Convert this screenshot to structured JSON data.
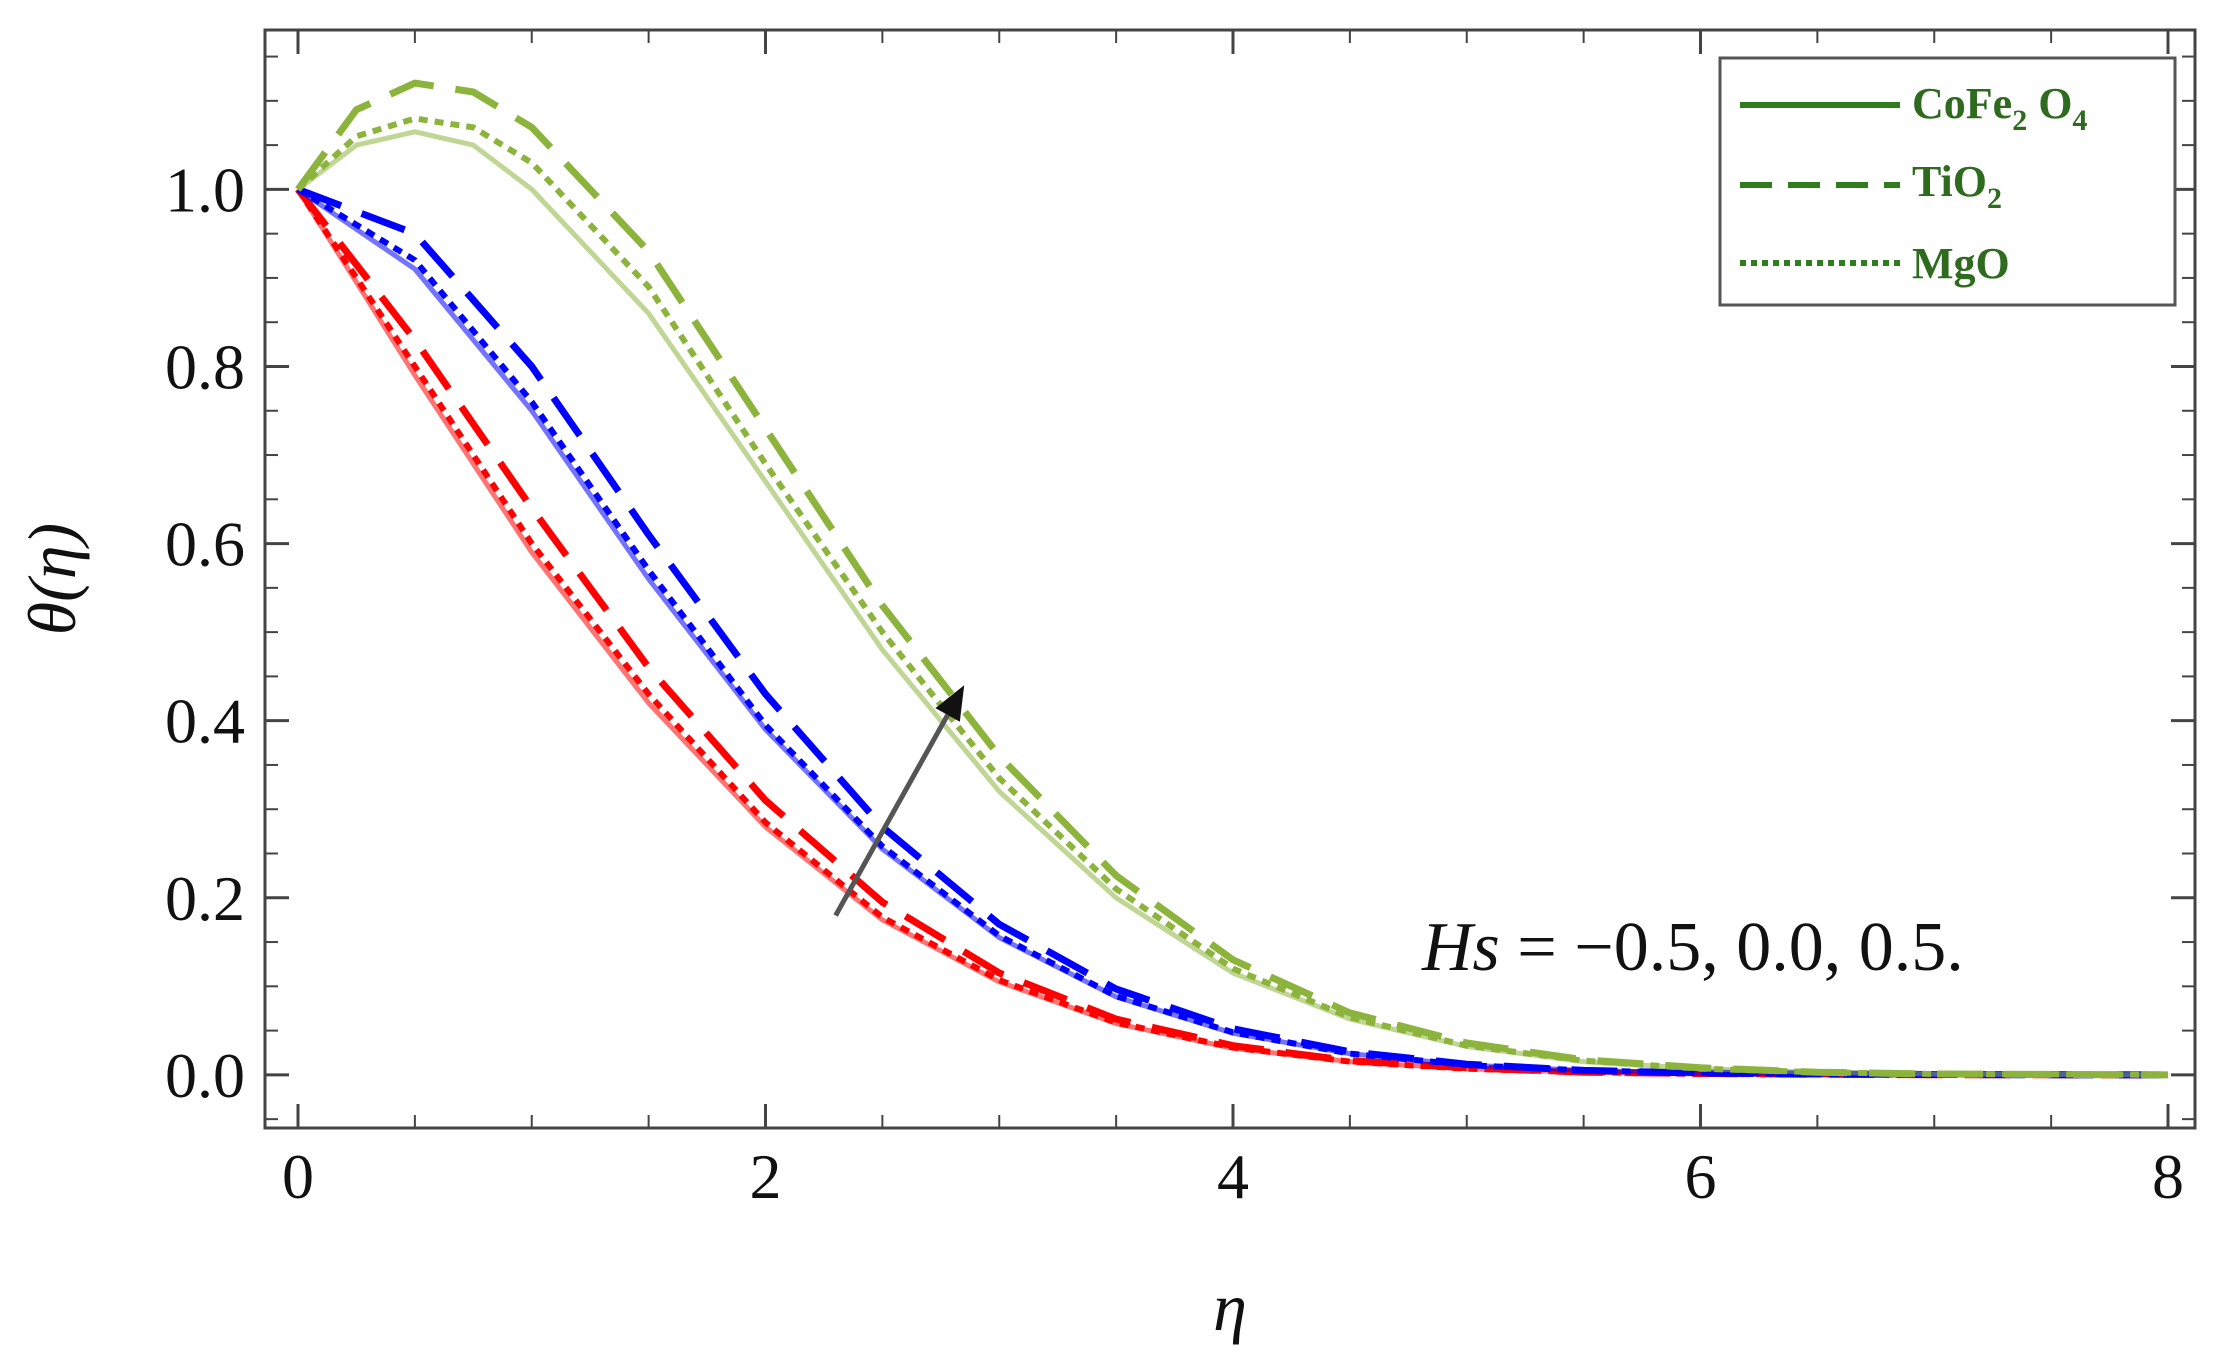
{
  "chart_data": {
    "type": "line",
    "title": "",
    "xlabel": "η",
    "ylabel": "θ(η)",
    "xlim": [
      0,
      8
    ],
    "ylim": [
      -0.06,
      1.18
    ],
    "xticks": [
      0,
      2,
      4,
      6,
      8
    ],
    "xtick_labels": [
      "0",
      "2",
      "4",
      "6",
      "8"
    ],
    "yticks": [
      0.0,
      0.2,
      0.4,
      0.6,
      0.8,
      1.0
    ],
    "ytick_labels": [
      "0.0",
      "0.2",
      "0.4",
      "0.6",
      "0.8",
      "1.0"
    ],
    "legend": {
      "position": "top-right",
      "entries": [
        {
          "name": "CoFe",
          "sub1": "2",
          "name2": " O",
          "sub2": "4",
          "style": "solid"
        },
        {
          "name": "TiO",
          "sub1": "2",
          "name2": "",
          "sub2": "",
          "style": "dashed"
        },
        {
          "name": "MgO",
          "sub1": "",
          "name2": "",
          "sub2": "",
          "style": "dotted"
        }
      ]
    },
    "annotation": {
      "var": "Hs",
      "text": " = −0.5, 0.0, 0.5."
    },
    "arrow": {
      "from": [
        2.3,
        0.18
      ],
      "to": [
        2.85,
        0.44
      ],
      "meaning": "increasing Hs"
    },
    "series": [
      {
        "name": "Hs = -0.5, CoFe2O4",
        "hs": -0.5,
        "material": "CoFe2O4",
        "color": "#ff0000",
        "style": "solid",
        "x": [
          0,
          0.5,
          1,
          1.5,
          2,
          2.5,
          3,
          3.5,
          4,
          4.5,
          5,
          5.5,
          6,
          6.5,
          7,
          7.5,
          8
        ],
        "y": [
          1.0,
          0.79,
          0.59,
          0.42,
          0.28,
          0.175,
          0.105,
          0.058,
          0.03,
          0.015,
          0.007,
          0.003,
          0.001,
          0.0005,
          0.0002,
          0.0001,
          0.0
        ]
      },
      {
        "name": "Hs = -0.5, TiO2",
        "hs": -0.5,
        "material": "TiO2",
        "color": "#ff0000",
        "style": "dashed",
        "x": [
          0,
          0.5,
          1,
          1.5,
          2,
          2.5,
          3,
          3.5,
          4,
          4.5,
          5,
          5.5,
          6,
          6.5,
          7,
          7.5,
          8
        ],
        "y": [
          1.0,
          0.83,
          0.64,
          0.46,
          0.31,
          0.195,
          0.115,
          0.063,
          0.033,
          0.016,
          0.008,
          0.003,
          0.0015,
          0.0006,
          0.0002,
          0.0001,
          0.0
        ]
      },
      {
        "name": "Hs = -0.5, MgO",
        "hs": -0.5,
        "material": "MgO",
        "color": "#ff0000",
        "style": "dotted",
        "x": [
          0,
          0.5,
          1,
          1.5,
          2,
          2.5,
          3,
          3.5,
          4,
          4.5,
          5,
          5.5,
          6,
          6.5,
          7,
          7.5,
          8
        ],
        "y": [
          1.0,
          0.8,
          0.6,
          0.43,
          0.285,
          0.178,
          0.107,
          0.059,
          0.031,
          0.015,
          0.007,
          0.003,
          0.001,
          0.0005,
          0.0002,
          0.0001,
          0.0
        ]
      },
      {
        "name": "Hs = 0.0, CoFe2O4",
        "hs": 0.0,
        "material": "CoFe2O4",
        "color": "#0000ff",
        "style": "solid",
        "x": [
          0,
          0.5,
          1,
          1.5,
          2,
          2.5,
          3,
          3.5,
          4,
          4.5,
          5,
          5.5,
          6,
          6.5,
          7,
          7.5,
          8
        ],
        "y": [
          1.0,
          0.91,
          0.75,
          0.56,
          0.39,
          0.255,
          0.155,
          0.088,
          0.047,
          0.024,
          0.011,
          0.005,
          0.002,
          0.001,
          0.0004,
          0.0001,
          0.0
        ]
      },
      {
        "name": "Hs = 0.0, TiO2",
        "hs": 0.0,
        "material": "TiO2",
        "color": "#0000ff",
        "style": "dashed",
        "x": [
          0,
          0.5,
          1,
          1.5,
          2,
          2.5,
          3,
          3.5,
          4,
          4.5,
          5,
          5.5,
          6,
          6.5,
          7,
          7.5,
          8
        ],
        "y": [
          1.0,
          0.95,
          0.8,
          0.61,
          0.43,
          0.28,
          0.17,
          0.097,
          0.052,
          0.026,
          0.012,
          0.005,
          0.002,
          0.001,
          0.0004,
          0.0001,
          0.0
        ]
      },
      {
        "name": "Hs = 0.0, MgO",
        "hs": 0.0,
        "material": "MgO",
        "color": "#0000ff",
        "style": "dotted",
        "x": [
          0,
          0.5,
          1,
          1.5,
          2,
          2.5,
          3,
          3.5,
          4,
          4.5,
          5,
          5.5,
          6,
          6.5,
          7,
          7.5,
          8
        ],
        "y": [
          1.0,
          0.92,
          0.76,
          0.57,
          0.395,
          0.258,
          0.157,
          0.089,
          0.048,
          0.024,
          0.011,
          0.005,
          0.002,
          0.001,
          0.0004,
          0.0001,
          0.0
        ]
      },
      {
        "name": "Hs = 0.5, CoFe2O4",
        "hs": 0.5,
        "material": "CoFe2O4",
        "color": "#8cb43c",
        "style": "solid",
        "x": [
          0,
          0.25,
          0.5,
          0.75,
          1,
          1.5,
          2,
          2.5,
          3,
          3.5,
          4,
          4.5,
          5,
          5.5,
          6,
          6.5,
          7,
          7.5,
          8
        ],
        "y": [
          1.0,
          1.05,
          1.065,
          1.05,
          1.0,
          0.86,
          0.67,
          0.48,
          0.32,
          0.2,
          0.115,
          0.063,
          0.032,
          0.015,
          0.007,
          0.003,
          0.001,
          0.0005,
          0.0
        ]
      },
      {
        "name": "Hs = 0.5, TiO2",
        "hs": 0.5,
        "material": "TiO2",
        "color": "#8cb43c",
        "style": "dashed",
        "x": [
          0,
          0.25,
          0.5,
          0.75,
          1,
          1.5,
          2,
          2.5,
          3,
          3.5,
          4,
          4.5,
          5,
          5.5,
          6,
          6.5,
          7,
          7.5,
          8
        ],
        "y": [
          1.0,
          1.09,
          1.12,
          1.11,
          1.07,
          0.93,
          0.73,
          0.53,
          0.36,
          0.225,
          0.13,
          0.07,
          0.036,
          0.017,
          0.008,
          0.003,
          0.001,
          0.0005,
          0.0
        ]
      },
      {
        "name": "Hs = 0.5, MgO",
        "hs": 0.5,
        "material": "MgO",
        "color": "#8cb43c",
        "style": "dotted",
        "x": [
          0,
          0.25,
          0.5,
          0.75,
          1,
          1.5,
          2,
          2.5,
          3,
          3.5,
          4,
          4.5,
          5,
          5.5,
          6,
          6.5,
          7,
          7.5,
          8
        ],
        "y": [
          1.0,
          1.06,
          1.08,
          1.07,
          1.03,
          0.89,
          0.69,
          0.5,
          0.335,
          0.21,
          0.12,
          0.065,
          0.033,
          0.016,
          0.007,
          0.003,
          0.001,
          0.0005,
          0.0
        ]
      }
    ]
  }
}
